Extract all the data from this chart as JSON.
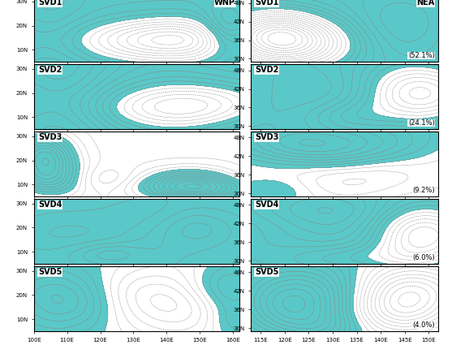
{
  "figure_width": 5.57,
  "figure_height": 4.41,
  "dpi": 100,
  "background_color": "#ffffff",
  "cyan_color": "#5AC8C8",
  "left_panels": {
    "lon_range": [
      100,
      162
    ],
    "lat_range": [
      5,
      32
    ],
    "lon_ticks": [
      100,
      110,
      120,
      130,
      140,
      150,
      160
    ],
    "lat_ticks": [
      10,
      20,
      30
    ],
    "lon_labels": [
      "100E",
      "110E",
      "120E",
      "130E",
      "140E",
      "150E",
      "160E"
    ],
    "lat_labels": [
      "10N",
      "20N",
      "30N"
    ],
    "region_label": "WNP",
    "svd_labels": [
      "SVD1",
      "SVD2",
      "SVD3",
      "SVD4",
      "SVD5"
    ]
  },
  "right_panels": {
    "lon_range": [
      113,
      152
    ],
    "lat_range": [
      29,
      50
    ],
    "lon_ticks": [
      115,
      120,
      125,
      130,
      135,
      140,
      145,
      150
    ],
    "lat_ticks": [
      30,
      36,
      42,
      48
    ],
    "lon_labels": [
      "115E",
      "120E",
      "125E",
      "130E",
      "135E",
      "140E",
      "145E",
      "150E"
    ],
    "lat_labels": [
      "30N",
      "36N",
      "42N",
      "48N"
    ],
    "region_label": "NEA",
    "svd_labels": [
      "SVD1",
      "SVD2",
      "SVD3",
      "SVD4",
      "SVD5"
    ],
    "percentages": [
      "(52.1%)",
      "(24.1%)",
      "(9.2%)",
      "(6.0%)",
      "(4.0%)"
    ]
  },
  "contour_color_pos": "#888888",
  "contour_color_neg": "#aaaaaa",
  "contour_linewidth": 0.35,
  "border_linewidth": 0.7
}
